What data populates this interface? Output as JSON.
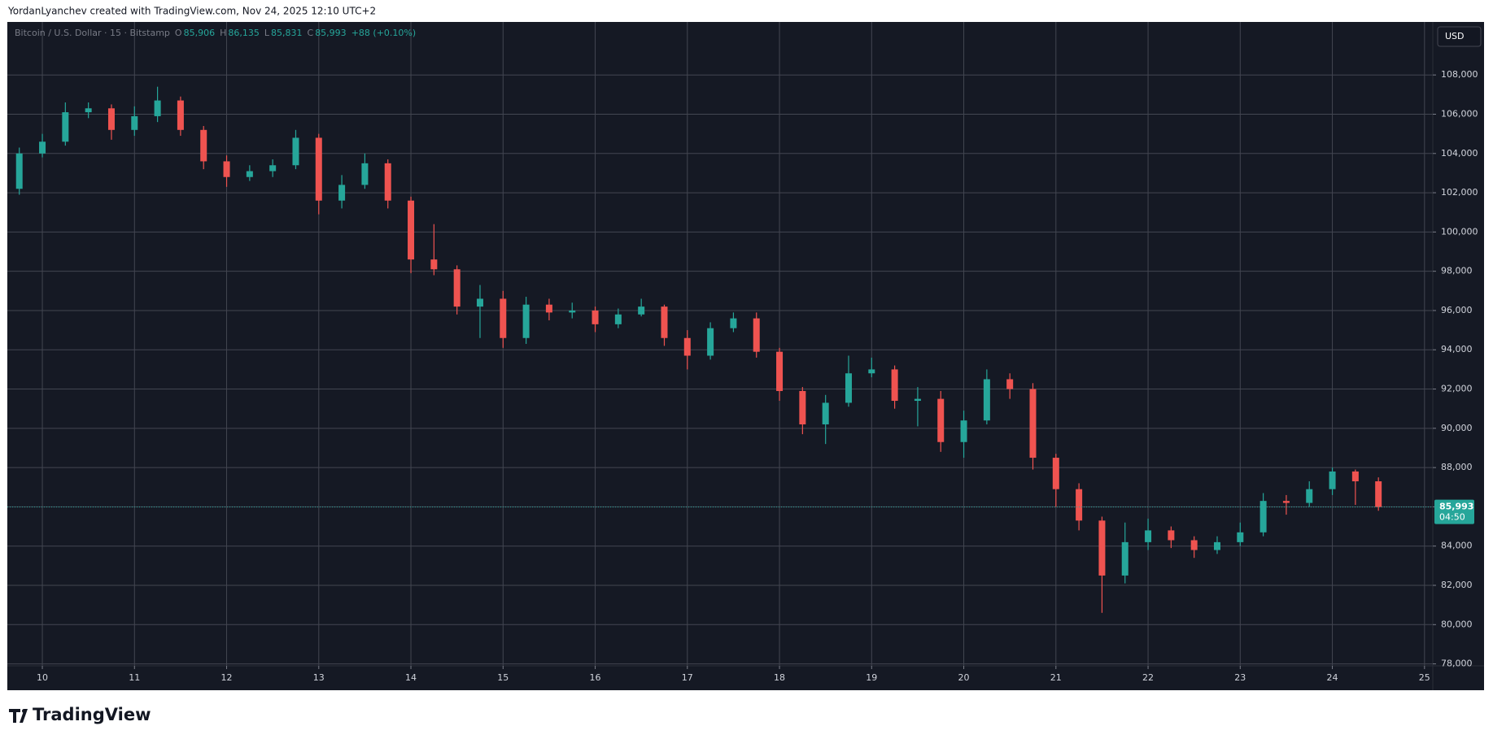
{
  "header": {
    "caption": "YordanLyanchev created with TradingView.com, Nov 24, 2025 12:10 UTC+2"
  },
  "footer": {
    "brand": "TradingView"
  },
  "chart_data": {
    "type": "candlestick",
    "legend": {
      "symbol": "Bitcoin / U.S. Dollar · 15 · Bitstamp",
      "fields": [
        "O",
        "H",
        "L",
        "C"
      ],
      "field_values": [
        "85,906",
        "86,135",
        "85,831",
        "85,993"
      ],
      "change": "+88 (+0.10%)"
    },
    "currency": "USD",
    "last_price": {
      "value": 85993,
      "label": "85,993",
      "countdown": "04:50"
    },
    "up_color": "#26a69a",
    "down_color": "#ef5350",
    "grid": true,
    "xlim": [
      9.62,
      25.09
    ],
    "xticks": [
      10,
      11,
      12,
      13,
      14,
      15,
      16,
      17,
      18,
      19,
      20,
      21,
      22,
      23,
      24,
      25
    ],
    "ylim": [
      77900,
      110700
    ],
    "yticks": [
      {
        "value": 78000,
        "label": "78,000"
      },
      {
        "value": 80000,
        "label": "80,000"
      },
      {
        "value": 82000,
        "label": "82,000"
      },
      {
        "value": 84000,
        "label": "84,000"
      },
      {
        "value": 86000,
        "label": "86,000"
      },
      {
        "value": 88000,
        "label": "88,000"
      },
      {
        "value": 90000,
        "label": "90,000"
      },
      {
        "value": 92000,
        "label": "92,000"
      },
      {
        "value": 94000,
        "label": "94,000"
      },
      {
        "value": 96000,
        "label": "96,000"
      },
      {
        "value": 98000,
        "label": "98,000"
      },
      {
        "value": 100000,
        "label": "100,000"
      },
      {
        "value": 102000,
        "label": "102,000"
      },
      {
        "value": 104000,
        "label": "104,000"
      },
      {
        "value": 106000,
        "label": "106,000"
      },
      {
        "value": 108000,
        "label": "108,000"
      }
    ],
    "x": [
      9.75,
      10,
      10.25,
      10.5,
      10.75,
      11,
      11.25,
      11.5,
      11.75,
      12,
      12.25,
      12.5,
      12.75,
      13,
      13.25,
      13.5,
      13.75,
      14,
      14.25,
      14.5,
      14.75,
      15,
      15.25,
      15.5,
      15.75,
      16,
      16.25,
      16.5,
      16.75,
      17,
      17.25,
      17.5,
      17.75,
      18,
      18.25,
      18.5,
      18.75,
      19,
      19.25,
      19.5,
      19.75,
      20,
      20.25,
      20.5,
      20.75,
      21,
      21.25,
      21.5,
      21.75,
      22,
      22.25,
      22.5,
      22.75,
      23,
      23.25,
      23.5,
      23.75,
      24,
      24.25,
      24.5
    ],
    "open": [
      102200,
      104000,
      104600,
      106100,
      106300,
      105200,
      105900,
      106700,
      105200,
      103600,
      102800,
      103100,
      103400,
      104800,
      101600,
      102400,
      103500,
      101600,
      98600,
      98100,
      96200,
      96600,
      94600,
      96300,
      95900,
      96000,
      95300,
      95800,
      96200,
      94600,
      93700,
      95100,
      95600,
      93900,
      91900,
      90200,
      91300,
      92800,
      93000,
      91400,
      91500,
      89300,
      90400,
      92500,
      92000,
      88500,
      86900,
      85300,
      82500,
      84200,
      84800,
      84300,
      83800,
      84200,
      84700,
      86300,
      86200,
      86900,
      87800,
      87300
    ],
    "high": [
      104300,
      105000,
      106600,
      106600,
      106500,
      106400,
      107400,
      106900,
      105400,
      103900,
      103400,
      103700,
      105200,
      105000,
      102900,
      104000,
      103700,
      101800,
      100400,
      98300,
      97300,
      97000,
      96700,
      96600,
      96400,
      96200,
      96100,
      96600,
      96300,
      95000,
      95400,
      95900,
      95900,
      94100,
      92100,
      91700,
      93700,
      93600,
      93200,
      92100,
      91900,
      90900,
      93000,
      92800,
      92300,
      88700,
      87200,
      85500,
      85200,
      85400,
      85000,
      84500,
      84500,
      85200,
      86700,
      86600,
      87300,
      88000,
      87900,
      87500
    ],
    "low": [
      101900,
      103800,
      104400,
      105800,
      104700,
      104900,
      105600,
      104900,
      103200,
      102300,
      102600,
      102800,
      103200,
      100900,
      101200,
      102200,
      101200,
      97900,
      97800,
      95800,
      94600,
      94100,
      94300,
      95500,
      95600,
      94900,
      95100,
      95700,
      94200,
      93000,
      93500,
      94900,
      93600,
      91400,
      89700,
      89200,
      91100,
      92600,
      91000,
      90100,
      88800,
      88500,
      90200,
      91500,
      87900,
      86000,
      84800,
      80600,
      82100,
      83800,
      83900,
      83400,
      83600,
      84000,
      84500,
      85600,
      86000,
      86600,
      86100,
      85800
    ],
    "close": [
      104000,
      104600,
      106100,
      106300,
      105200,
      105900,
      106700,
      105200,
      103600,
      102800,
      103100,
      103400,
      104800,
      101600,
      102400,
      103500,
      101600,
      98600,
      98100,
      96200,
      96600,
      94600,
      96300,
      95900,
      96000,
      95300,
      95800,
      96200,
      94600,
      93700,
      95100,
      95600,
      93900,
      91900,
      90200,
      91300,
      92800,
      93000,
      91400,
      91500,
      89300,
      90400,
      92500,
      92000,
      88500,
      86900,
      85300,
      82500,
      84200,
      84800,
      84300,
      83800,
      84200,
      84700,
      86300,
      86200,
      86900,
      87800,
      87300,
      85993
    ]
  }
}
